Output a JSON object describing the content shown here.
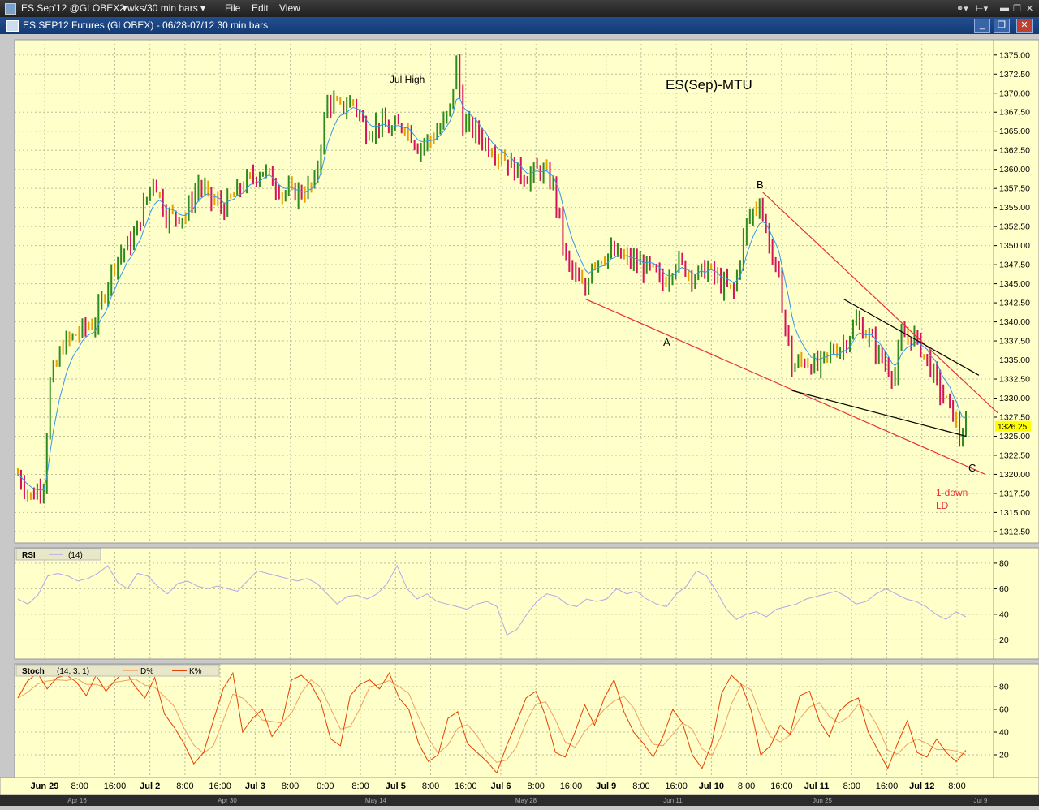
{
  "menubar": {
    "symbol": "ES Sep'12 @GLOBEX",
    "interval": "2 wks/30 min bars",
    "menus": [
      "File",
      "Edit",
      "View"
    ]
  },
  "titlebar": {
    "title": "ES SEP12 Futures (GLOBEX) - 06/28-07/12 30 min bars"
  },
  "colors": {
    "chart_bg": "#ffffc9",
    "bar_up": "#2e8b1e",
    "bar_down": "#d4145a",
    "bar_neutral": "#e8a000",
    "ma_line": "#3399ee",
    "trend_red": "#e8303c",
    "trend_black": "#000000",
    "rsi_line": "#b9a4e8",
    "stoch_k": "#e84000",
    "stoch_d": "#f0a060",
    "price_tag_bg": "#ffff00"
  },
  "chart_data": [
    {
      "type": "candlestick",
      "title": "ES(Sep)-MTU",
      "ylim": [
        1311,
        1377
      ],
      "yticks": [
        "1312.50",
        "1315.00",
        "1317.50",
        "1320.00",
        "1322.50",
        "1325.00",
        "1327.50",
        "1330.00",
        "1332.50",
        "1335.00",
        "1337.50",
        "1340.00",
        "1342.50",
        "1345.00",
        "1347.50",
        "1350.00",
        "1352.50",
        "1355.00",
        "1357.50",
        "1360.00",
        "1362.50",
        "1365.00",
        "1367.50",
        "1370.00",
        "1372.50",
        "1375.00"
      ],
      "last_price": "1326.25",
      "x_labels": [
        "Jun 29",
        "8:00",
        "16:00",
        "Jul 2",
        "8:00",
        "16:00",
        "Jul 3",
        "8:00",
        "0:00",
        "8:00",
        "Jul 5",
        "8:00",
        "16:00",
        "Jul 6",
        "8:00",
        "16:00",
        "Jul 9",
        "8:00",
        "16:00",
        "Jul 10",
        "8:00",
        "16:00",
        "Jul 11",
        "8:00",
        "16:00",
        "Jul 12",
        "8:00"
      ],
      "secondary_x_labels": [
        "Apr 16",
        "Apr 30",
        "May 14",
        "May 28",
        "Jun 11",
        "Jun 25",
        "Jul 9"
      ],
      "annotations": [
        "Jul High",
        "B",
        "A",
        "C",
        "1-down",
        "LD"
      ],
      "price_path": [
        [
          0,
          1320
        ],
        [
          4,
          1317
        ],
        [
          8,
          1319
        ],
        [
          10,
          1332
        ],
        [
          14,
          1337
        ],
        [
          20,
          1339
        ],
        [
          24,
          1340
        ],
        [
          30,
          1348
        ],
        [
          36,
          1351
        ],
        [
          42,
          1359
        ],
        [
          46,
          1354
        ],
        [
          52,
          1354
        ],
        [
          56,
          1358
        ],
        [
          60,
          1356
        ],
        [
          64,
          1355
        ],
        [
          70,
          1358
        ],
        [
          76,
          1360
        ],
        [
          82,
          1357
        ],
        [
          88,
          1357
        ],
        [
          92,
          1358
        ],
        [
          96,
          1369
        ],
        [
          100,
          1368
        ],
        [
          104,
          1369
        ],
        [
          108,
          1365
        ],
        [
          112,
          1366
        ],
        [
          116,
          1365
        ],
        [
          120,
          1366
        ],
        [
          124,
          1363
        ],
        [
          128,
          1364
        ],
        [
          132,
          1366
        ],
        [
          134,
          1368
        ],
        [
          136,
          1374
        ],
        [
          138,
          1366
        ],
        [
          142,
          1365
        ],
        [
          146,
          1363
        ],
        [
          150,
          1362
        ],
        [
          154,
          1360
        ],
        [
          158,
          1359
        ],
        [
          162,
          1360
        ],
        [
          166,
          1358
        ],
        [
          170,
          1348
        ],
        [
          174,
          1345
        ],
        [
          176,
          1344
        ],
        [
          178,
          1348
        ],
        [
          184,
          1349
        ],
        [
          190,
          1348
        ],
        [
          196,
          1347
        ],
        [
          200,
          1345
        ],
        [
          204,
          1348
        ],
        [
          210,
          1346
        ],
        [
          214,
          1347
        ],
        [
          218,
          1345
        ],
        [
          222,
          1344
        ],
        [
          226,
          1353
        ],
        [
          230,
          1356
        ],
        [
          232,
          1352
        ],
        [
          236,
          1345
        ],
        [
          240,
          1334
        ],
        [
          244,
          1335
        ],
        [
          248,
          1334
        ],
        [
          252,
          1336
        ],
        [
          256,
          1337
        ],
        [
          260,
          1340
        ],
        [
          264,
          1338
        ],
        [
          268,
          1335
        ],
        [
          272,
          1333
        ],
        [
          274,
          1338
        ],
        [
          278,
          1338
        ],
        [
          282,
          1335
        ],
        [
          286,
          1331
        ],
        [
          290,
          1328
        ],
        [
          292,
          1325
        ],
        [
          294,
          1326
        ]
      ]
    },
    {
      "type": "line",
      "title": "RSI",
      "param": "(14)",
      "ylim": [
        5,
        92
      ],
      "yticks": [
        "20",
        "40",
        "60",
        "80"
      ],
      "values": [
        52,
        48,
        55,
        70,
        72,
        70,
        66,
        68,
        72,
        78,
        65,
        60,
        72,
        70,
        62,
        56,
        64,
        66,
        62,
        60,
        62,
        60,
        58,
        66,
        74,
        72,
        70,
        68,
        66,
        68,
        64,
        56,
        48,
        54,
        55,
        52,
        56,
        64,
        78,
        60,
        52,
        56,
        50,
        48,
        46,
        44,
        48,
        50,
        46,
        24,
        28,
        40,
        50,
        56,
        54,
        48,
        46,
        52,
        50,
        52,
        60,
        56,
        58,
        52,
        48,
        46,
        56,
        62,
        74,
        70,
        58,
        44,
        36,
        40,
        42,
        38,
        44,
        46,
        48,
        52,
        54,
        56,
        58,
        54,
        48,
        50,
        56,
        60,
        56,
        52,
        50,
        46,
        40,
        36,
        42,
        38
      ]
    },
    {
      "type": "line",
      "title": "Stoch",
      "param": "(14, 3, 1)",
      "legend": [
        "D%",
        "K%"
      ],
      "ylim": [
        0,
        100
      ],
      "yticks": [
        "20",
        "40",
        "60",
        "80"
      ],
      "values": [
        70,
        85,
        92,
        78,
        88,
        90,
        84,
        72,
        90,
        76,
        86,
        94,
        80,
        70,
        88,
        56,
        44,
        30,
        12,
        22,
        50,
        78,
        92,
        40,
        52,
        60,
        36,
        48,
        86,
        90,
        82,
        66,
        34,
        28,
        72,
        82,
        86,
        78,
        92,
        70,
        60,
        30,
        14,
        20,
        52,
        58,
        30,
        22,
        14,
        4,
        28,
        48,
        70,
        76,
        54,
        22,
        18,
        40,
        64,
        46,
        70,
        86,
        58,
        40,
        30,
        18,
        36,
        60,
        48,
        20,
        8,
        30,
        74,
        90,
        82,
        60,
        20,
        28,
        46,
        38,
        72,
        76,
        50,
        36,
        58,
        66,
        70,
        40,
        24,
        8,
        30,
        50,
        22,
        18,
        34,
        22,
        14,
        24
      ]
    }
  ]
}
